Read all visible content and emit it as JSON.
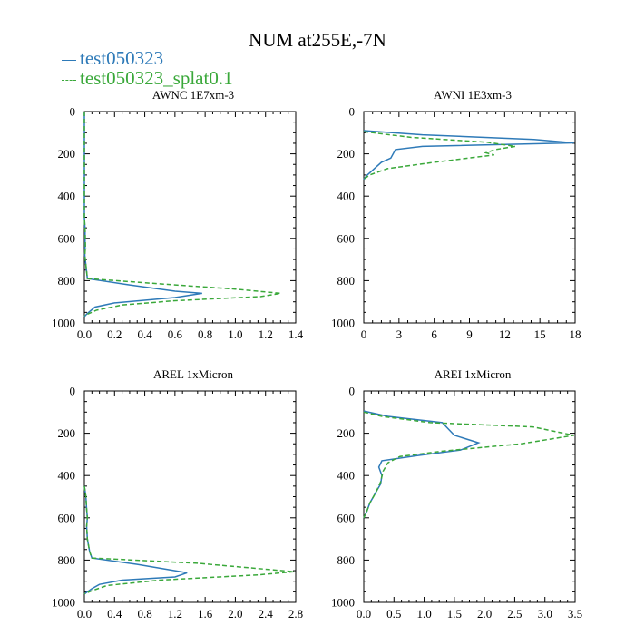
{
  "figure": {
    "title": "NUM at255E,-7N"
  },
  "legend": {
    "entries": [
      {
        "label": "test050323",
        "color": "#2e7ab8",
        "style": "solid"
      },
      {
        "label": "test050323_splat0.1",
        "color": "#3aa83a",
        "style": "dashed"
      }
    ]
  },
  "chart_data": [
    {
      "type": "line",
      "title": "AWNC  1E7xm-3",
      "xlim": [
        0,
        1.4
      ],
      "xticks": [
        "0.0",
        "0.2",
        "0.4",
        "0.6",
        "0.8",
        "1.0",
        "1.2",
        "1.4"
      ],
      "ylim": [
        1000,
        0
      ],
      "yticks": [
        "0",
        "200",
        "400",
        "600",
        "800",
        "1000"
      ],
      "series": [
        {
          "name": "test050323",
          "x": [
            0,
            0,
            0.005,
            0.005,
            0.003,
            0.02,
            0.3,
            0.6,
            0.78,
            0.6,
            0.2,
            0.07,
            0.02,
            0
          ],
          "y": [
            0,
            500,
            560,
            640,
            680,
            790,
            820,
            850,
            860,
            880,
            905,
            925,
            955,
            970
          ]
        },
        {
          "name": "test050323_splat0.1",
          "x": [
            0,
            0,
            0.005,
            0.007,
            0.003,
            0.02,
            0.5,
            1.0,
            1.3,
            1.17,
            0.6,
            0.25,
            0.08,
            0
          ],
          "y": [
            0,
            500,
            560,
            640,
            680,
            790,
            815,
            840,
            860,
            875,
            895,
            915,
            940,
            965
          ]
        }
      ]
    },
    {
      "type": "line",
      "title": "AWNI  1E3xm-3",
      "xlim": [
        0,
        18
      ],
      "xticks": [
        "0",
        "3",
        "6",
        "9",
        "12",
        "15",
        "18"
      ],
      "ylim": [
        1000,
        0
      ],
      "yticks": [
        "0",
        "200",
        "400",
        "600",
        "800",
        "1000"
      ],
      "series": [
        {
          "name": "test050323",
          "x": [
            0,
            5,
            14.5,
            17.9,
            5,
            2.7,
            2.3,
            1.5,
            0.8,
            0.3,
            0
          ],
          "y": [
            90,
            110,
            132,
            148,
            165,
            180,
            220,
            240,
            275,
            300,
            320
          ]
        },
        {
          "name": "test050323_splat0.1",
          "x": [
            0,
            4,
            10.5,
            12.9,
            11.2,
            10.4,
            11.1,
            6,
            2,
            0.5,
            0
          ],
          "y": [
            95,
            122,
            145,
            165,
            180,
            195,
            205,
            240,
            270,
            300,
            320
          ]
        }
      ]
    },
    {
      "type": "line",
      "title": "AREL  1xMicron",
      "xlim": [
        0,
        2.8
      ],
      "xticks": [
        "0.0",
        "0.4",
        "0.8",
        "1.2",
        "1.6",
        "2.0",
        "2.4",
        "2.8"
      ],
      "ylim": [
        1000,
        0
      ],
      "yticks": [
        "0",
        "200",
        "400",
        "600",
        "800",
        "1000"
      ],
      "series": [
        {
          "name": "test050323",
          "x": [
            0,
            0.02,
            0.03,
            0.04,
            0.03,
            0.04,
            0.07,
            0.1,
            0.7,
            1.36,
            1.2,
            0.5,
            0.2,
            0.1,
            0
          ],
          "y": [
            450,
            500,
            560,
            600,
            640,
            700,
            760,
            790,
            820,
            860,
            880,
            895,
            915,
            935,
            960
          ]
        },
        {
          "name": "test050323_splat0.1",
          "x": [
            0,
            0.02,
            0.03,
            0.04,
            0.03,
            0.04,
            0.07,
            0.1,
            1.5,
            2.78,
            2.3,
            1.0,
            0.3,
            0.1,
            0
          ],
          "y": [
            450,
            500,
            560,
            600,
            640,
            700,
            760,
            790,
            815,
            855,
            870,
            895,
            920,
            945,
            960
          ]
        }
      ]
    },
    {
      "type": "line",
      "title": "AREI  1xMicron",
      "xlim": [
        0,
        3.5
      ],
      "xticks": [
        "0.0",
        "0.5",
        "1.0",
        "1.5",
        "2.0",
        "2.5",
        "3.0",
        "3.5"
      ],
      "ylim": [
        1000,
        0
      ],
      "yticks": [
        "0",
        "200",
        "400",
        "600",
        "800",
        "1000"
      ],
      "series": [
        {
          "name": "test050323",
          "x": [
            0,
            0.4,
            1.3,
            1.5,
            1.9,
            1.6,
            0.9,
            0.3,
            0.25,
            0.3,
            0.28,
            0.2,
            0.1,
            0.05,
            0
          ],
          "y": [
            95,
            120,
            150,
            210,
            245,
            280,
            305,
            330,
            360,
            400,
            440,
            480,
            530,
            570,
            600
          ]
        },
        {
          "name": "test050323_splat0.1",
          "x": [
            0,
            0.3,
            1.1,
            2.8,
            3.48,
            2.6,
            1.3,
            0.6,
            0.4,
            0.32,
            0.28,
            0.2,
            0.1,
            0.05,
            0
          ],
          "y": [
            100,
            120,
            150,
            170,
            210,
            250,
            285,
            310,
            340,
            380,
            430,
            480,
            530,
            570,
            600
          ]
        }
      ]
    }
  ]
}
